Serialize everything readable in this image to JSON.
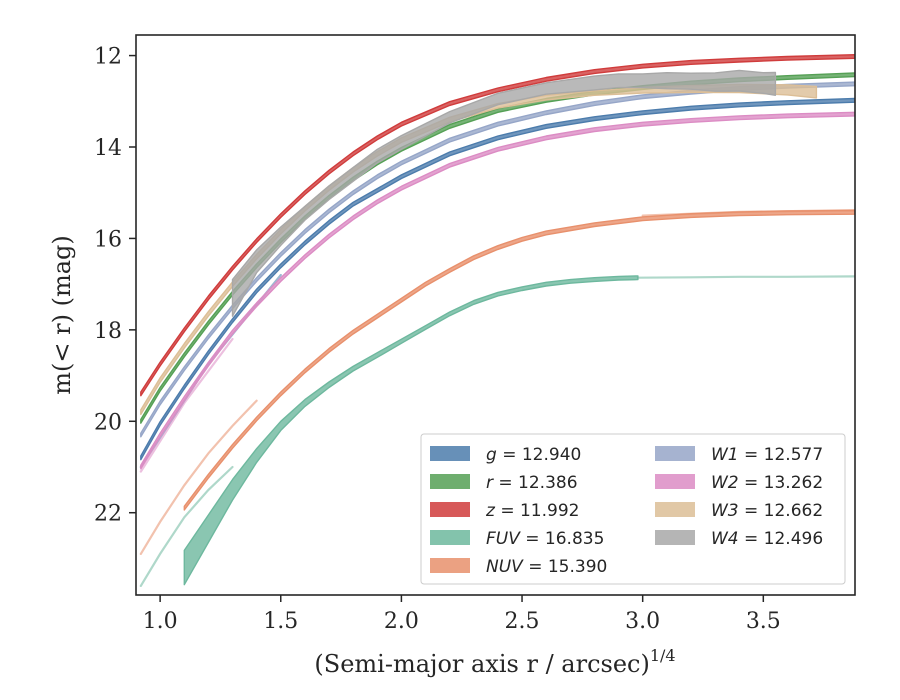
{
  "chart_data": {
    "type": "line",
    "title": "",
    "xlabel": "(Semi-major axis r / arcsec)",
    "xlabel_exponent": "1/4",
    "ylabel": "m(< r) (mag)",
    "xlim": [
      0.9,
      3.88
    ],
    "ylim": [
      23.8,
      11.55
    ],
    "y_inverted": true,
    "grid": false,
    "legend_position": "lower-right",
    "x_ticks": [
      "1.0",
      "1.5",
      "2.0",
      "2.5",
      "3.0",
      "3.5"
    ],
    "x_tick_values": [
      1.0,
      1.5,
      2.0,
      2.5,
      3.0,
      3.5
    ],
    "y_ticks": [
      "12",
      "14",
      "16",
      "18",
      "20",
      "22"
    ],
    "y_tick_values": [
      12,
      14,
      16,
      18,
      20,
      22
    ],
    "series": [
      {
        "name": "g = 12.940",
        "var": "g",
        "total": "12.940",
        "color": "#4c7cac",
        "x": [
          0.92,
          1.0,
          1.1,
          1.2,
          1.3,
          1.4,
          1.5,
          1.6,
          1.7,
          1.8,
          1.9,
          2.0,
          2.2,
          2.4,
          2.6,
          2.8,
          3.0,
          3.2,
          3.4,
          3.6,
          3.88
        ],
        "y": [
          20.8,
          20.05,
          19.25,
          18.5,
          17.8,
          17.15,
          16.6,
          16.1,
          15.65,
          15.25,
          14.95,
          14.65,
          14.15,
          13.8,
          13.55,
          13.38,
          13.25,
          13.15,
          13.08,
          13.03,
          12.98
        ],
        "width": 0.08
      },
      {
        "name": "r = 12.386",
        "var": "r",
        "total": "12.386",
        "color": "#55a055",
        "x": [
          0.92,
          1.0,
          1.1,
          1.2,
          1.3,
          1.4,
          1.5,
          1.6,
          1.7,
          1.8,
          1.9,
          2.0,
          2.2,
          2.4,
          2.6,
          2.8,
          3.0,
          3.2,
          3.4,
          3.6,
          3.88
        ],
        "y": [
          20.0,
          19.3,
          18.55,
          17.85,
          17.2,
          16.6,
          16.05,
          15.55,
          15.1,
          14.7,
          14.35,
          14.05,
          13.55,
          13.2,
          12.98,
          12.82,
          12.7,
          12.6,
          12.53,
          12.48,
          12.42
        ],
        "width": 0.08
      },
      {
        "name": "z = 11.992",
        "var": "z",
        "total": "11.992",
        "color": "#d03c3c",
        "x": [
          0.92,
          1.0,
          1.1,
          1.2,
          1.3,
          1.4,
          1.5,
          1.6,
          1.7,
          1.8,
          1.9,
          2.0,
          2.2,
          2.4,
          2.6,
          2.8,
          3.0,
          3.2,
          3.4,
          3.6,
          3.88
        ],
        "y": [
          19.4,
          18.75,
          18.0,
          17.3,
          16.65,
          16.05,
          15.5,
          15.0,
          14.55,
          14.15,
          13.8,
          13.5,
          13.05,
          12.75,
          12.52,
          12.35,
          12.23,
          12.15,
          12.1,
          12.06,
          12.02
        ],
        "width": 0.08
      },
      {
        "name": "FUV = 16.835",
        "var": "FUV",
        "total": "16.835",
        "color": "#6db89e",
        "x": [
          1.1,
          1.2,
          1.3,
          1.4,
          1.5,
          1.6,
          1.7,
          1.8,
          1.9,
          2.0,
          2.1,
          2.2,
          2.3,
          2.4,
          2.5,
          2.6,
          2.7,
          2.8,
          2.9,
          2.98
        ],
        "y": [
          23.2,
          22.35,
          21.5,
          20.75,
          20.1,
          19.6,
          19.2,
          18.85,
          18.55,
          18.25,
          17.95,
          17.65,
          17.4,
          17.22,
          17.1,
          17.0,
          16.94,
          16.9,
          16.87,
          16.86
        ],
        "width": [
          0.75,
          0.6,
          0.45,
          0.3,
          0.2,
          0.15,
          0.12,
          0.1,
          0.1,
          0.09,
          0.08,
          0.08,
          0.08,
          0.08,
          0.08,
          0.08,
          0.08,
          0.08,
          0.08,
          0.08
        ]
      },
      {
        "name": "NUV = 15.390",
        "var": "NUV",
        "total": "15.390",
        "color": "#e8906c",
        "x": [
          1.1,
          1.2,
          1.3,
          1.4,
          1.5,
          1.6,
          1.7,
          1.8,
          1.9,
          2.0,
          2.1,
          2.2,
          2.3,
          2.4,
          2.5,
          2.6,
          2.8,
          3.0,
          3.2,
          3.4,
          3.6,
          3.88
        ],
        "y": [
          21.9,
          21.2,
          20.55,
          19.95,
          19.4,
          18.9,
          18.45,
          18.05,
          17.7,
          17.35,
          17.0,
          16.7,
          16.42,
          16.2,
          16.02,
          15.88,
          15.7,
          15.57,
          15.5,
          15.46,
          15.44,
          15.43
        ],
        "width": 0.08
      },
      {
        "name": "W1 = 12.577",
        "var": "W1",
        "total": "12.577",
        "color": "#96a6c8",
        "x": [
          0.92,
          1.0,
          1.1,
          1.2,
          1.3,
          1.4,
          1.5,
          1.6,
          1.7,
          1.8,
          1.9,
          2.0,
          2.2,
          2.4,
          2.6,
          2.8,
          3.0,
          3.2,
          3.4,
          3.6,
          3.88
        ],
        "y": [
          20.3,
          19.6,
          18.85,
          18.15,
          17.5,
          16.9,
          16.35,
          15.85,
          15.4,
          15.0,
          14.65,
          14.35,
          13.85,
          13.5,
          13.25,
          13.05,
          12.9,
          12.8,
          12.72,
          12.67,
          12.62
        ],
        "width": 0.08
      },
      {
        "name": "W2 = 13.262",
        "var": "W2",
        "total": "13.262",
        "color": "#dc8cc4",
        "x": [
          0.92,
          1.0,
          1.1,
          1.2,
          1.3,
          1.4,
          1.5,
          1.6,
          1.7,
          1.8,
          1.9,
          2.0,
          2.2,
          2.4,
          2.6,
          2.8,
          3.0,
          3.2,
          3.4,
          3.6,
          3.88
        ],
        "y": [
          21.0,
          20.3,
          19.5,
          18.75,
          18.05,
          17.45,
          16.9,
          16.4,
          15.95,
          15.55,
          15.2,
          14.9,
          14.4,
          14.05,
          13.8,
          13.62,
          13.5,
          13.42,
          13.36,
          13.32,
          13.28
        ],
        "width": 0.08
      },
      {
        "name": "W3 = 12.662",
        "var": "W3",
        "total": "12.662",
        "color": "#dcbe96",
        "x": [
          0.92,
          1.0,
          1.1,
          1.2,
          1.3,
          1.4,
          1.5,
          1.6,
          1.7,
          1.8,
          1.9,
          2.0,
          2.2,
          2.4,
          2.6,
          2.8,
          3.0,
          3.2,
          3.4,
          3.6,
          3.72
        ],
        "y": [
          19.8,
          19.1,
          18.35,
          17.65,
          17.0,
          16.4,
          15.85,
          15.35,
          14.9,
          14.5,
          14.15,
          13.85,
          13.4,
          13.1,
          12.92,
          12.82,
          12.76,
          12.73,
          12.72,
          12.75,
          12.8
        ],
        "width": [
          0.1,
          0.1,
          0.1,
          0.1,
          0.1,
          0.1,
          0.1,
          0.1,
          0.1,
          0.1,
          0.1,
          0.1,
          0.1,
          0.1,
          0.1,
          0.1,
          0.12,
          0.15,
          0.18,
          0.22,
          0.25
        ]
      },
      {
        "name": "W4 = 12.496",
        "var": "W4",
        "total": "12.496",
        "color": "#a8a8a8",
        "x": [
          1.3,
          1.4,
          1.5,
          1.6,
          1.7,
          1.8,
          1.9,
          2.0,
          2.2,
          2.4,
          2.6,
          2.8,
          2.9,
          3.0,
          3.1,
          3.2,
          3.3,
          3.4,
          3.5,
          3.55
        ],
        "y": [
          17.3,
          16.5,
          15.95,
          15.45,
          15.0,
          14.6,
          14.2,
          13.9,
          13.35,
          12.95,
          12.72,
          12.6,
          12.55,
          12.55,
          12.55,
          12.56,
          12.58,
          12.55,
          12.6,
          12.62
        ],
        "width": [
          0.8,
          0.5,
          0.4,
          0.3,
          0.3,
          0.3,
          0.3,
          0.3,
          0.25,
          0.25,
          0.25,
          0.3,
          0.3,
          0.3,
          0.35,
          0.35,
          0.4,
          0.45,
          0.45,
          0.5
        ]
      }
    ],
    "extrapolations": [
      {
        "series": "g",
        "x": [
          0.92,
          1.2,
          1.5
        ],
        "y": [
          21.0,
          18.75,
          16.8
        ]
      },
      {
        "series": "FUV",
        "x": [
          0.92,
          1.0,
          1.1,
          1.2,
          1.3
        ],
        "y": [
          23.6,
          22.9,
          22.1,
          21.5,
          21.0
        ]
      },
      {
        "series": "FUV",
        "x": [
          2.98,
          3.2,
          3.4,
          3.6,
          3.88
        ],
        "y": [
          16.86,
          16.85,
          16.84,
          16.84,
          16.83
        ]
      },
      {
        "series": "NUV",
        "x": [
          0.92,
          1.0,
          1.1,
          1.2,
          1.3,
          1.4
        ],
        "y": [
          22.9,
          22.2,
          21.4,
          20.7,
          20.1,
          19.55
        ]
      },
      {
        "series": "NUV",
        "x": [
          3.0,
          3.4,
          3.88
        ],
        "y": [
          15.5,
          15.42,
          15.38
        ]
      },
      {
        "series": "W2",
        "x": [
          0.92,
          1.1,
          1.3
        ],
        "y": [
          21.1,
          19.6,
          18.2
        ]
      }
    ]
  }
}
